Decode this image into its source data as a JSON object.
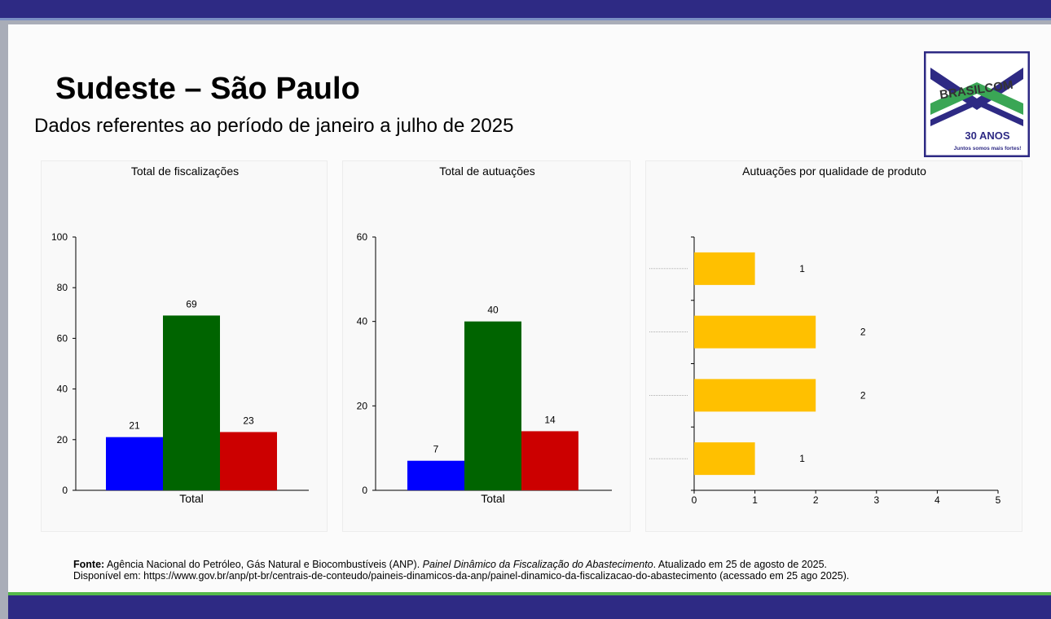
{
  "slide": {
    "title": "Sudeste – São Paulo",
    "subtitle": "Dados referentes ao período de janeiro a julho de 2025"
  },
  "logo": {
    "text": "BRASILCOM",
    "badge": "30 ANOS",
    "tagline": "Juntos somos mais fortes!",
    "colors": {
      "navy": "#2e2a84",
      "green": "#3aa655"
    }
  },
  "chart_data": [
    {
      "type": "bar",
      "title": "Total de fiscalizações",
      "categories": [
        "Total"
      ],
      "series": [
        {
          "values": [
            21
          ],
          "color": "#0000ff"
        },
        {
          "values": [
            69
          ],
          "color": "#006400"
        },
        {
          "values": [
            23
          ],
          "color": "#cc0000"
        }
      ],
      "ylim": [
        0,
        100
      ],
      "yticks": [
        0,
        20,
        40,
        60,
        80,
        100
      ],
      "data_labels": true,
      "grid": false
    },
    {
      "type": "bar",
      "title": "Total de autuações",
      "categories": [
        "Total"
      ],
      "series": [
        {
          "values": [
            7
          ],
          "color": "#0000ff"
        },
        {
          "values": [
            40
          ],
          "color": "#006400"
        },
        {
          "values": [
            14
          ],
          "color": "#cc0000"
        }
      ],
      "ylim": [
        0,
        60
      ],
      "yticks": [
        0,
        20,
        40,
        60
      ],
      "data_labels": true,
      "grid": false
    },
    {
      "type": "bar",
      "orientation": "horizontal",
      "title": "Autuações por qualidade de produto",
      "values": [
        1,
        2,
        2,
        1
      ],
      "color": "#ffc000",
      "xlim": [
        0,
        5
      ],
      "xticks": [
        0,
        1,
        2,
        3,
        4,
        5
      ],
      "data_labels": true,
      "grid": false
    }
  ],
  "source": {
    "label": "Fonte:",
    "text1": " Agência Nacional do Petróleo, Gás Natural e Biocombustíveis (ANP). ",
    "italic": "Painel Dinâmico da Fiscalização do Abastecimento",
    "text2": ". Atualizado em 25 de agosto de 2025.",
    "line2": "Disponível em: https://www.gov.br/anp/pt-br/centrais-de-conteudo/paineis-dinamicos-da-anp/painel-dinamico-da-fiscalizacao-do-abastecimento (acessado em 25 ago 2025)."
  }
}
